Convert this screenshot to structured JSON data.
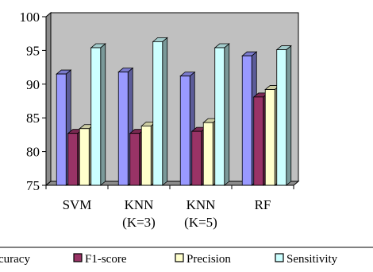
{
  "chart_data": {
    "type": "bar",
    "style": "3d-clustered-column",
    "categories": [
      [
        "SVM"
      ],
      [
        "KNN",
        "(K=3)"
      ],
      [
        "KNN",
        "(K=5)"
      ],
      [
        "RF"
      ]
    ],
    "series": [
      {
        "name": "Accuracy",
        "color": "#9999ff",
        "values": [
          91.5,
          91.8,
          91.2,
          94.2
        ]
      },
      {
        "name": "F1-score",
        "color": "#993366",
        "values": [
          82.7,
          82.7,
          83.0,
          88.1
        ]
      },
      {
        "name": "Precision",
        "color": "#ffffcc",
        "values": [
          83.4,
          83.8,
          84.3,
          89.2
        ]
      },
      {
        "name": "Sensitivity",
        "color": "#ccffff",
        "values": [
          95.4,
          96.3,
          95.4,
          95.1
        ]
      }
    ],
    "visible_legend_labels": [
      "curacy",
      "F1-score",
      "Precision",
      "Sensitivity"
    ],
    "y_ticks": [
      75,
      80,
      85,
      90,
      95,
      100
    ],
    "ylim": [
      75,
      100
    ],
    "grid": false,
    "plot_background": "#c0c0c0",
    "legend_position": "bottom",
    "title": "",
    "xlabel": "",
    "ylabel": ""
  }
}
